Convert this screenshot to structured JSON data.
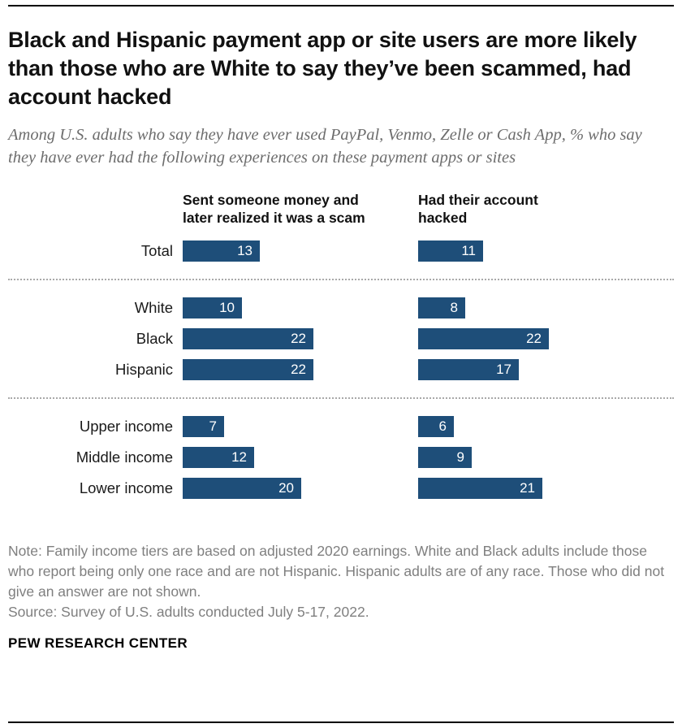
{
  "header": {
    "title": "Black and Hispanic payment app or site users are more likely than those who are White to say they’ve been scammed, had account hacked",
    "subtitle": "Among U.S. adults who say they have ever used PayPal, Venmo, Zelle or Cash App, % who say they have ever had the following experiences on these payment apps or sites"
  },
  "chart_data": {
    "type": "bar",
    "orientation": "horizontal",
    "bar_color": "#1e4e79",
    "value_label_position": "inside-end",
    "xlim": [
      0,
      24
    ],
    "categories": [
      "Total",
      "White",
      "Black",
      "Hispanic",
      "Upper income",
      "Middle income",
      "Lower income"
    ],
    "group_breaks": [
      1,
      4
    ],
    "series": [
      {
        "name": "Sent someone money and later realized it was a scam",
        "values": [
          13,
          10,
          22,
          22,
          7,
          12,
          20
        ]
      },
      {
        "name": "Had their account hacked",
        "values": [
          11,
          8,
          22,
          17,
          6,
          9,
          21
        ]
      }
    ]
  },
  "footer": {
    "note": "Note: Family income tiers are based on adjusted 2020 earnings. White and Black adults include those who report being only one race and are not Hispanic. Hispanic adults are of any race. Those who did not give an answer are not shown.",
    "source": "Source: Survey of U.S. adults conducted July 5-17, 2022.",
    "brand": "PEW RESEARCH CENTER"
  }
}
